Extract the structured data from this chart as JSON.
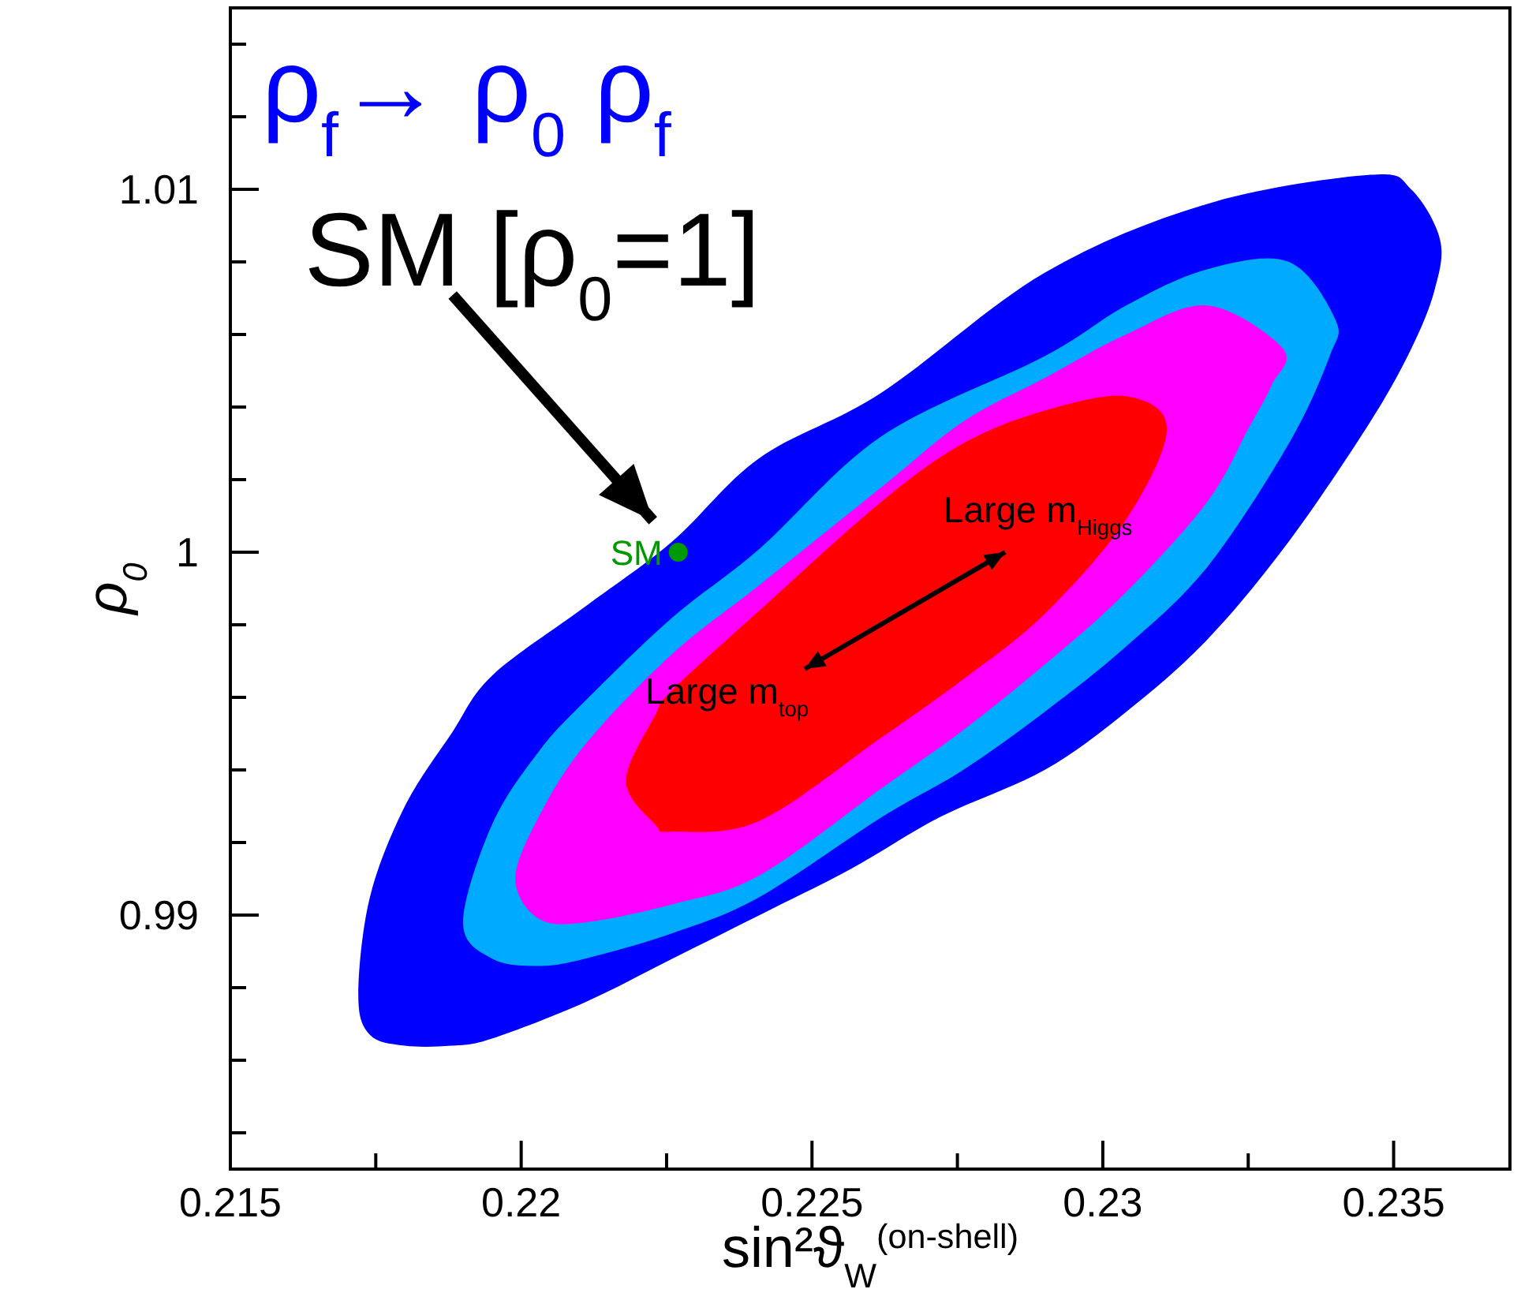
{
  "chart_data": {
    "type": "area",
    "title": "ρ$_{f}$→ ρ$_{0}$ ρ$_{f}$",
    "xlabel": "sin²ϑ$_{W}$$^{(on-shell)}$",
    "ylabel": "ρ$_{0}$",
    "xlim": [
      0.215,
      0.237
    ],
    "ylim": [
      0.983,
      1.015
    ],
    "xticks": [
      0.215,
      {
        "value": 0.2175,
        "label": null
      },
      0.22,
      {
        "value": 0.2225,
        "label": null
      },
      0.225,
      {
        "value": 0.2275,
        "label": null
      },
      0.23,
      {
        "value": 0.2325,
        "label": null
      },
      0.235
    ],
    "yticks": [
      {
        "value": 0.984,
        "label": null
      },
      {
        "value": 0.986,
        "label": null
      },
      {
        "value": 0.988,
        "label": null
      },
      0.99,
      {
        "value": 0.992,
        "label": null
      },
      {
        "value": 0.994,
        "label": null
      },
      {
        "value": 0.996,
        "label": null
      },
      {
        "value": 0.998,
        "label": null
      },
      1,
      {
        "value": 1.002,
        "label": null
      },
      {
        "value": 1.004,
        "label": null
      },
      {
        "value": 1.006,
        "label": null
      },
      {
        "value": 1.008,
        "label": null
      },
      1.01,
      {
        "value": 1.012,
        "label": null
      },
      {
        "value": 1.014,
        "label": null
      }
    ],
    "grid": false,
    "series": [
      {
        "color": "#0000ff",
        "x": [
          0.2172,
          0.2174,
          0.218,
          0.2188,
          0.2195,
          0.2211,
          0.2226,
          0.2241,
          0.2262,
          0.229,
          0.2318,
          0.2346,
          0.2353,
          0.2358,
          0.2357,
          0.2353,
          0.2346,
          0.2332,
          0.2318,
          0.2304,
          0.229,
          0.2272,
          0.2257,
          0.2241,
          0.2226,
          0.2211,
          0.2195,
          0.2188,
          0.218,
          0.2174
        ],
        "values": [
          0.9878,
          0.9905,
          0.993,
          0.995,
          0.9966,
          0.9985,
          1.0003,
          1.0026,
          1.0044,
          1.0077,
          1.0096,
          1.0104,
          1.01,
          1.0086,
          1.0072,
          1.0056,
          1.0036,
          1.0003,
          0.9976,
          0.9956,
          0.994,
          0.9927,
          0.9913,
          0.99,
          0.9888,
          0.9876,
          0.9866,
          0.9864,
          0.9864,
          0.9867
        ]
      },
      {
        "color": "#00aaff",
        "x": [
          0.219,
          0.2195,
          0.2203,
          0.2211,
          0.2226,
          0.2241,
          0.2262,
          0.229,
          0.2304,
          0.2318,
          0.2332,
          0.234,
          0.2339,
          0.2332,
          0.2318,
          0.2304,
          0.229,
          0.2276,
          0.2262,
          0.2241,
          0.2226,
          0.2211,
          0.2203,
          0.2195
        ],
        "values": [
          0.9898,
          0.9925,
          0.9945,
          0.9959,
          0.9982,
          1.0001,
          1.0032,
          1.0054,
          1.0068,
          1.0078,
          1.008,
          1.0064,
          1.0054,
          1.003,
          0.9996,
          0.9974,
          0.9956,
          0.994,
          0.9927,
          0.9905,
          0.9895,
          0.9888,
          0.9886,
          0.9888
        ]
      },
      {
        "color": "#ff00ff",
        "x": [
          0.2199,
          0.2203,
          0.2211,
          0.2226,
          0.2241,
          0.2262,
          0.2276,
          0.229,
          0.2304,
          0.2318,
          0.2331,
          0.2329,
          0.2325,
          0.2318,
          0.2304,
          0.229,
          0.2276,
          0.2262,
          0.2241,
          0.2226,
          0.2211,
          0.2203
        ],
        "values": [
          0.991,
          0.9927,
          0.9947,
          0.9972,
          0.9991,
          1.0018,
          1.0036,
          1.0048,
          1.006,
          1.0068,
          1.0056,
          1.0046,
          1.0034,
          1.0014,
          0.9989,
          0.9969,
          0.9951,
          0.9935,
          0.9911,
          0.9903,
          0.9898,
          0.9899
        ]
      },
      {
        "color": "#ff0000",
        "x": [
          0.2218,
          0.2223,
          0.2226,
          0.2241,
          0.2262,
          0.2276,
          0.229,
          0.2304,
          0.2311,
          0.2304,
          0.229,
          0.2276,
          0.2262,
          0.2241,
          0.2226,
          0.2223
        ],
        "values": [
          0.9937,
          0.9955,
          0.9962,
          0.9984,
          1.0014,
          1.003,
          1.0039,
          1.0043,
          1.0034,
          1.0009,
          0.9983,
          0.9965,
          0.9949,
          0.9926,
          0.9923,
          0.9925
        ]
      },
      {
        "type": "scatter",
        "name": "SM",
        "color": "#009900",
        "x": [
          0.2227
        ],
        "values": [
          1.0
        ],
        "marker": "circle"
      }
    ],
    "annotations": [
      "SM [ρ$_{0}$=1]",
      "Large m$_{Higgs}$",
      "Large m$_{top}$"
    ]
  }
}
